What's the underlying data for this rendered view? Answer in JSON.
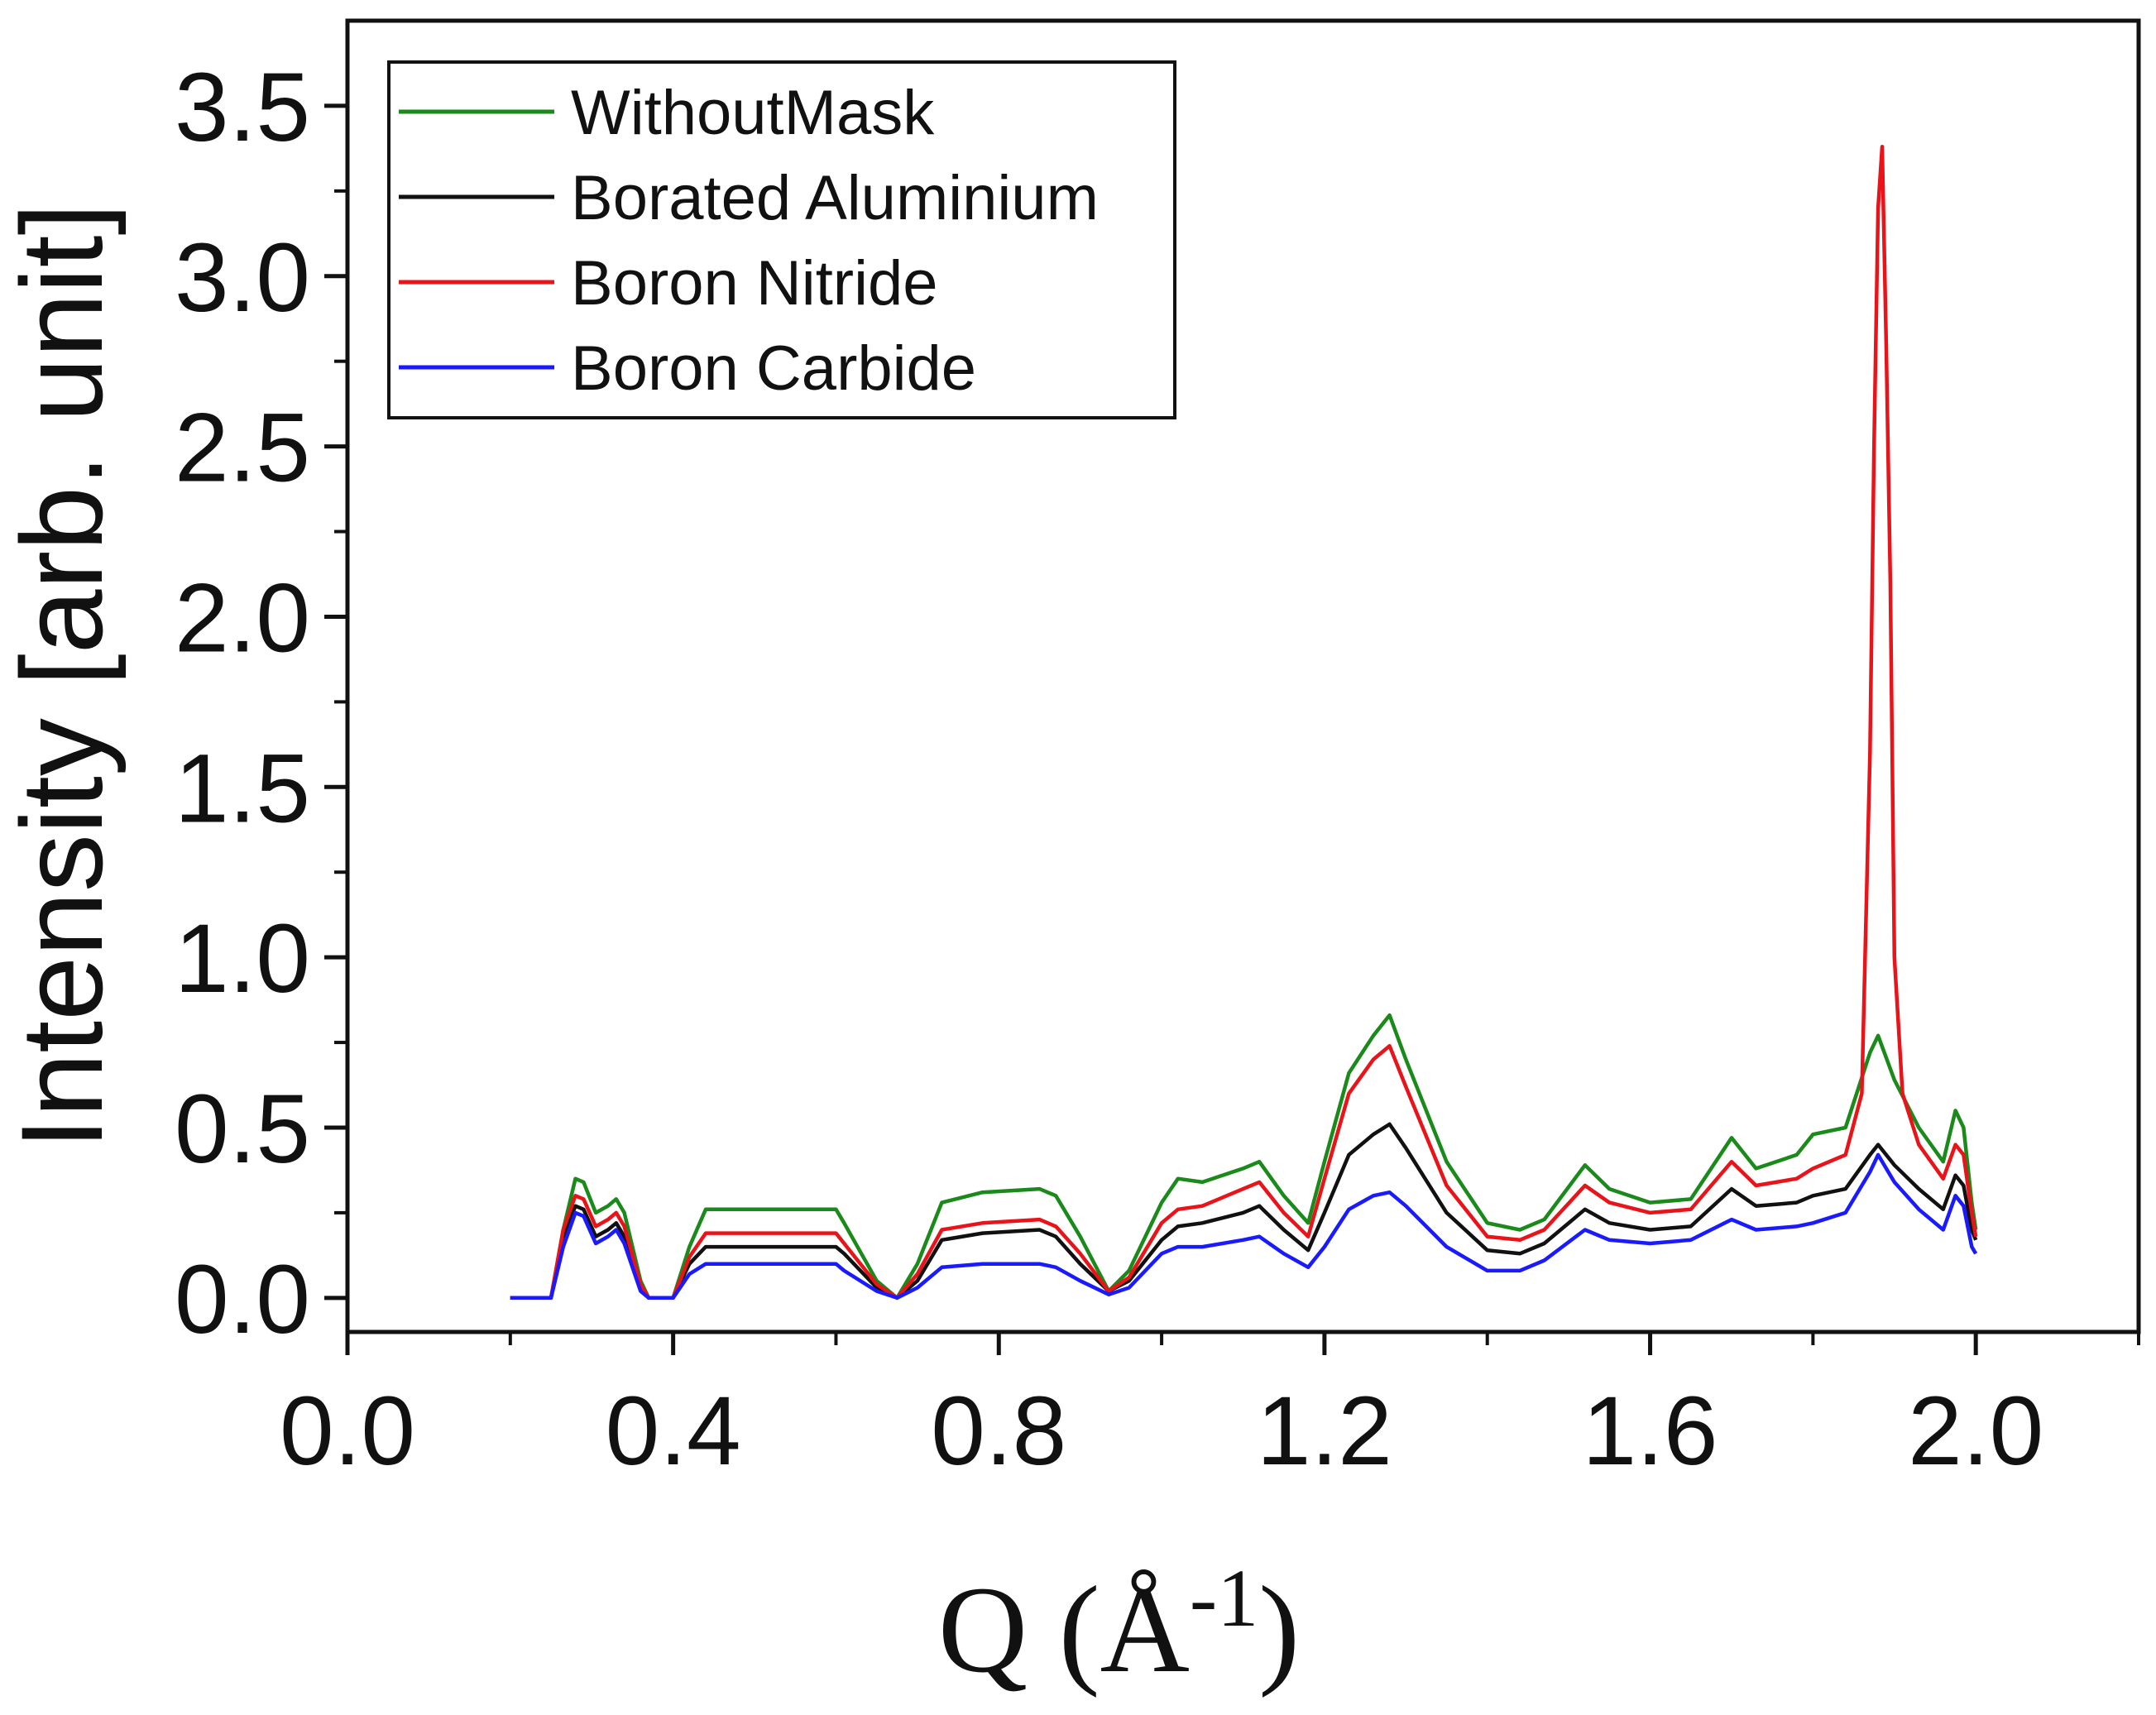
{
  "chart_data": {
    "type": "line",
    "xlabel": {
      "main": "Q (Å",
      "sup": "-1",
      "close": ")"
    },
    "ylabel": "Intensity [arb. unit]",
    "xlim": [
      0.0,
      2.2
    ],
    "ylim": [
      -0.1,
      3.75
    ],
    "xticks": [
      0.0,
      0.4,
      0.8,
      1.2,
      1.6,
      2.0
    ],
    "xtick_labels": [
      "0.0",
      "0.4",
      "0.8",
      "1.2",
      "1.6",
      "2.0"
    ],
    "xminor": [
      0.2,
      0.6,
      1.0,
      1.4,
      1.8,
      2.2
    ],
    "yticks": [
      0.0,
      0.5,
      1.0,
      1.5,
      2.0,
      2.5,
      3.0,
      3.5
    ],
    "ytick_labels": [
      "0.0",
      "0.5",
      "1.0",
      "1.5",
      "2.0",
      "2.5",
      "3.0",
      "3.5"
    ],
    "yminor": [
      0.25,
      0.75,
      1.25,
      1.75,
      2.25,
      2.75,
      3.25
    ],
    "grid": false,
    "legend_position": "top-left",
    "series": [
      {
        "name": "WithoutMask",
        "color": "#1a8a1a",
        "points": [
          [
            0.2,
            0.0
          ],
          [
            0.25,
            0.0
          ],
          [
            0.265,
            0.2
          ],
          [
            0.28,
            0.35
          ],
          [
            0.29,
            0.34
          ],
          [
            0.305,
            0.25
          ],
          [
            0.32,
            0.27
          ],
          [
            0.33,
            0.29
          ],
          [
            0.34,
            0.25
          ],
          [
            0.36,
            0.05
          ],
          [
            0.37,
            0.0
          ],
          [
            0.4,
            0.0
          ],
          [
            0.42,
            0.15
          ],
          [
            0.44,
            0.26
          ],
          [
            0.5,
            0.26
          ],
          [
            0.55,
            0.26
          ],
          [
            0.6,
            0.26
          ],
          [
            0.61,
            0.22
          ],
          [
            0.65,
            0.05
          ],
          [
            0.675,
            0.0
          ],
          [
            0.7,
            0.1
          ],
          [
            0.73,
            0.28
          ],
          [
            0.78,
            0.31
          ],
          [
            0.85,
            0.32
          ],
          [
            0.87,
            0.3
          ],
          [
            0.9,
            0.18
          ],
          [
            0.935,
            0.02
          ],
          [
            0.96,
            0.08
          ],
          [
            1.0,
            0.28
          ],
          [
            1.02,
            0.35
          ],
          [
            1.05,
            0.34
          ],
          [
            1.1,
            0.38
          ],
          [
            1.12,
            0.4
          ],
          [
            1.15,
            0.3
          ],
          [
            1.18,
            0.22
          ],
          [
            1.2,
            0.4
          ],
          [
            1.23,
            0.66
          ],
          [
            1.26,
            0.77
          ],
          [
            1.28,
            0.83
          ],
          [
            1.3,
            0.7
          ],
          [
            1.35,
            0.4
          ],
          [
            1.4,
            0.22
          ],
          [
            1.44,
            0.2
          ],
          [
            1.47,
            0.23
          ],
          [
            1.52,
            0.39
          ],
          [
            1.55,
            0.32
          ],
          [
            1.6,
            0.28
          ],
          [
            1.65,
            0.29
          ],
          [
            1.7,
            0.47
          ],
          [
            1.73,
            0.38
          ],
          [
            1.78,
            0.42
          ],
          [
            1.8,
            0.48
          ],
          [
            1.84,
            0.5
          ],
          [
            1.87,
            0.72
          ],
          [
            1.88,
            0.77
          ],
          [
            1.9,
            0.64
          ],
          [
            1.93,
            0.5
          ],
          [
            1.96,
            0.4
          ],
          [
            1.975,
            0.55
          ],
          [
            1.985,
            0.5
          ],
          [
            1.995,
            0.28
          ],
          [
            2.0,
            0.2
          ]
        ]
      },
      {
        "name": "Borated Aluminium",
        "color": "#111111",
        "points": [
          [
            0.2,
            0.0
          ],
          [
            0.25,
            0.0
          ],
          [
            0.265,
            0.18
          ],
          [
            0.28,
            0.27
          ],
          [
            0.29,
            0.26
          ],
          [
            0.305,
            0.18
          ],
          [
            0.32,
            0.2
          ],
          [
            0.33,
            0.22
          ],
          [
            0.34,
            0.18
          ],
          [
            0.36,
            0.03
          ],
          [
            0.37,
            0.0
          ],
          [
            0.4,
            0.0
          ],
          [
            0.42,
            0.1
          ],
          [
            0.44,
            0.15
          ],
          [
            0.5,
            0.15
          ],
          [
            0.6,
            0.15
          ],
          [
            0.61,
            0.13
          ],
          [
            0.65,
            0.03
          ],
          [
            0.675,
            0.0
          ],
          [
            0.7,
            0.05
          ],
          [
            0.73,
            0.17
          ],
          [
            0.78,
            0.19
          ],
          [
            0.85,
            0.2
          ],
          [
            0.87,
            0.18
          ],
          [
            0.9,
            0.1
          ],
          [
            0.935,
            0.02
          ],
          [
            0.96,
            0.05
          ],
          [
            1.0,
            0.17
          ],
          [
            1.02,
            0.21
          ],
          [
            1.05,
            0.22
          ],
          [
            1.1,
            0.25
          ],
          [
            1.12,
            0.27
          ],
          [
            1.15,
            0.2
          ],
          [
            1.18,
            0.14
          ],
          [
            1.2,
            0.25
          ],
          [
            1.23,
            0.42
          ],
          [
            1.26,
            0.48
          ],
          [
            1.28,
            0.51
          ],
          [
            1.3,
            0.44
          ],
          [
            1.35,
            0.25
          ],
          [
            1.4,
            0.14
          ],
          [
            1.44,
            0.13
          ],
          [
            1.47,
            0.16
          ],
          [
            1.52,
            0.26
          ],
          [
            1.55,
            0.22
          ],
          [
            1.6,
            0.2
          ],
          [
            1.65,
            0.21
          ],
          [
            1.7,
            0.32
          ],
          [
            1.73,
            0.27
          ],
          [
            1.78,
            0.28
          ],
          [
            1.8,
            0.3
          ],
          [
            1.84,
            0.32
          ],
          [
            1.87,
            0.42
          ],
          [
            1.88,
            0.45
          ],
          [
            1.9,
            0.39
          ],
          [
            1.93,
            0.32
          ],
          [
            1.96,
            0.26
          ],
          [
            1.975,
            0.36
          ],
          [
            1.985,
            0.33
          ],
          [
            1.995,
            0.2
          ],
          [
            2.0,
            0.17
          ]
        ]
      },
      {
        "name": "Boron Nitride",
        "color": "#e8141a",
        "points": [
          [
            0.2,
            0.0
          ],
          [
            0.25,
            0.0
          ],
          [
            0.265,
            0.2
          ],
          [
            0.28,
            0.3
          ],
          [
            0.29,
            0.29
          ],
          [
            0.305,
            0.21
          ],
          [
            0.32,
            0.23
          ],
          [
            0.33,
            0.25
          ],
          [
            0.34,
            0.21
          ],
          [
            0.36,
            0.04
          ],
          [
            0.37,
            0.0
          ],
          [
            0.4,
            0.0
          ],
          [
            0.42,
            0.12
          ],
          [
            0.44,
            0.19
          ],
          [
            0.5,
            0.19
          ],
          [
            0.6,
            0.19
          ],
          [
            0.61,
            0.16
          ],
          [
            0.65,
            0.04
          ],
          [
            0.675,
            0.0
          ],
          [
            0.7,
            0.07
          ],
          [
            0.73,
            0.2
          ],
          [
            0.78,
            0.22
          ],
          [
            0.85,
            0.23
          ],
          [
            0.87,
            0.21
          ],
          [
            0.9,
            0.13
          ],
          [
            0.935,
            0.02
          ],
          [
            0.96,
            0.06
          ],
          [
            1.0,
            0.22
          ],
          [
            1.02,
            0.26
          ],
          [
            1.05,
            0.27
          ],
          [
            1.1,
            0.32
          ],
          [
            1.12,
            0.34
          ],
          [
            1.15,
            0.25
          ],
          [
            1.18,
            0.18
          ],
          [
            1.2,
            0.35
          ],
          [
            1.23,
            0.6
          ],
          [
            1.26,
            0.7
          ],
          [
            1.28,
            0.74
          ],
          [
            1.3,
            0.62
          ],
          [
            1.35,
            0.33
          ],
          [
            1.4,
            0.18
          ],
          [
            1.44,
            0.17
          ],
          [
            1.47,
            0.2
          ],
          [
            1.52,
            0.33
          ],
          [
            1.55,
            0.28
          ],
          [
            1.6,
            0.25
          ],
          [
            1.65,
            0.26
          ],
          [
            1.7,
            0.4
          ],
          [
            1.73,
            0.33
          ],
          [
            1.78,
            0.35
          ],
          [
            1.8,
            0.38
          ],
          [
            1.84,
            0.42
          ],
          [
            1.86,
            0.6
          ],
          [
            1.87,
            1.6
          ],
          [
            1.875,
            2.5
          ],
          [
            1.88,
            3.2
          ],
          [
            1.885,
            3.38
          ],
          [
            1.89,
            2.8
          ],
          [
            1.895,
            2.1
          ],
          [
            1.9,
            1.0
          ],
          [
            1.91,
            0.6
          ],
          [
            1.93,
            0.45
          ],
          [
            1.96,
            0.35
          ],
          [
            1.975,
            0.45
          ],
          [
            1.985,
            0.42
          ],
          [
            1.995,
            0.25
          ],
          [
            2.0,
            0.18
          ]
        ]
      },
      {
        "name": "Boron Carbide",
        "color": "#1a1aff",
        "points": [
          [
            0.2,
            0.0
          ],
          [
            0.25,
            0.0
          ],
          [
            0.265,
            0.15
          ],
          [
            0.28,
            0.25
          ],
          [
            0.29,
            0.24
          ],
          [
            0.305,
            0.16
          ],
          [
            0.32,
            0.18
          ],
          [
            0.33,
            0.2
          ],
          [
            0.34,
            0.16
          ],
          [
            0.36,
            0.02
          ],
          [
            0.37,
            0.0
          ],
          [
            0.4,
            0.0
          ],
          [
            0.42,
            0.07
          ],
          [
            0.44,
            0.1
          ],
          [
            0.5,
            0.1
          ],
          [
            0.6,
            0.1
          ],
          [
            0.61,
            0.08
          ],
          [
            0.65,
            0.02
          ],
          [
            0.675,
            0.0
          ],
          [
            0.7,
            0.03
          ],
          [
            0.73,
            0.09
          ],
          [
            0.78,
            0.1
          ],
          [
            0.85,
            0.1
          ],
          [
            0.87,
            0.09
          ],
          [
            0.9,
            0.05
          ],
          [
            0.935,
            0.01
          ],
          [
            0.96,
            0.03
          ],
          [
            1.0,
            0.13
          ],
          [
            1.02,
            0.15
          ],
          [
            1.05,
            0.15
          ],
          [
            1.1,
            0.17
          ],
          [
            1.12,
            0.18
          ],
          [
            1.15,
            0.13
          ],
          [
            1.18,
            0.09
          ],
          [
            1.2,
            0.15
          ],
          [
            1.23,
            0.26
          ],
          [
            1.26,
            0.3
          ],
          [
            1.28,
            0.31
          ],
          [
            1.3,
            0.27
          ],
          [
            1.35,
            0.15
          ],
          [
            1.4,
            0.08
          ],
          [
            1.44,
            0.08
          ],
          [
            1.47,
            0.11
          ],
          [
            1.52,
            0.2
          ],
          [
            1.55,
            0.17
          ],
          [
            1.6,
            0.16
          ],
          [
            1.65,
            0.17
          ],
          [
            1.7,
            0.23
          ],
          [
            1.73,
            0.2
          ],
          [
            1.78,
            0.21
          ],
          [
            1.8,
            0.22
          ],
          [
            1.84,
            0.25
          ],
          [
            1.87,
            0.37
          ],
          [
            1.88,
            0.42
          ],
          [
            1.9,
            0.34
          ],
          [
            1.93,
            0.26
          ],
          [
            1.96,
            0.2
          ],
          [
            1.975,
            0.3
          ],
          [
            1.985,
            0.27
          ],
          [
            1.995,
            0.15
          ],
          [
            2.0,
            0.13
          ]
        ]
      }
    ]
  }
}
